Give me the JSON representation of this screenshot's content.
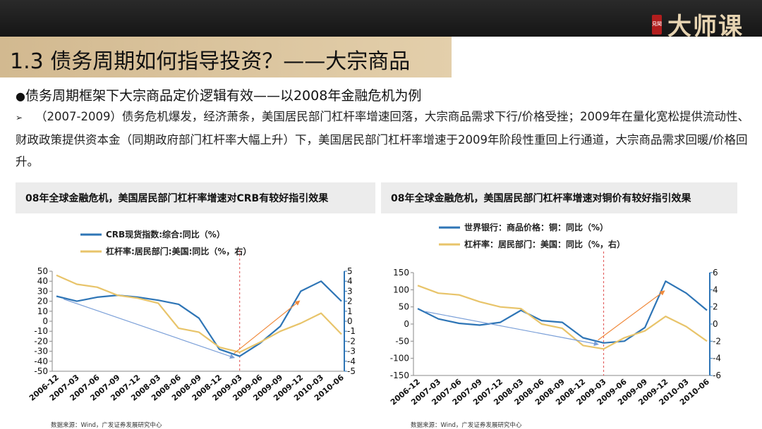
{
  "brand": {
    "seal": "見聞",
    "name": "大师课"
  },
  "header": {
    "title": "1.3 债务周期如何指导投资？——大宗商品"
  },
  "bullet": {
    "marker": "●",
    "text": "债务周期框架下大宗商品定价逻辑有效——以2008年金融危机为例"
  },
  "paragraph": {
    "marker": "➢",
    "text": "（2007-2009）债务危机爆发，经济萧条，美国居民部门杠杆率增速回落，大宗商品需求下行/价格受挫；2009年在量化宽松提供流动性、财政政策提供资本金（同期政府部门杠杆率大幅上升）下，美国居民部门杠杆率增速于2009年阶段性重回上行通道，大宗商品需求回暖/价格回升。"
  },
  "colors": {
    "series_blue": "#2E75B6",
    "series_gold": "#E8C46A",
    "crisis_line": "#E05050",
    "arrow_blue": "#7A9FD8",
    "arrow_orange": "#F08A3C"
  },
  "chart_data": [
    {
      "type": "line",
      "title": "08年全球金融危机，美国居民部门杠杆率增速对CRB有较好指引效果",
      "x_categories": [
        "2006-12",
        "2007-03",
        "2007-06",
        "2007-09",
        "2007-12",
        "2008-03",
        "2008-06",
        "2008-09",
        "2008-12",
        "2009-03",
        "2009-06",
        "2009-09",
        "2009-12",
        "2010-03",
        "2010-06"
      ],
      "series": [
        {
          "name": "CRB现货指数:综合:同比（%）",
          "axis": "left",
          "values": [
            25,
            20,
            24,
            26,
            24,
            21,
            17,
            3,
            -28,
            -35,
            -22,
            -5,
            30,
            40,
            20
          ]
        },
        {
          "name": "杠杆率:居民部门:美国:同比（%，右）",
          "axis": "right",
          "values": [
            4.6,
            3.7,
            3.4,
            2.6,
            2.3,
            1.8,
            -0.7,
            -1.1,
            -2.6,
            -3.1,
            -2.1,
            -1.0,
            -0.2,
            0.8,
            -1.3
          ]
        }
      ],
      "ylim_left": [
        -50,
        50
      ],
      "yticks_left": [
        -50,
        -40,
        -30,
        -20,
        -10,
        0,
        10,
        20,
        30,
        40,
        50
      ],
      "ylim_right": [
        -5,
        5
      ],
      "yticks_right": [
        -5,
        -4,
        -3,
        -2,
        -1,
        0,
        1,
        2,
        3,
        4,
        5
      ],
      "marker_x": "2009-03",
      "source": "数据来源：Wind，广发证券发展研究中心"
    },
    {
      "type": "line",
      "title": "08年全球金融危机，美国居民部门杠杆率增速对铜价有较好指引效果",
      "x_categories": [
        "2006-12",
        "2007-03",
        "2007-06",
        "2007-09",
        "2007-12",
        "2008-03",
        "2008-06",
        "2008-09",
        "2008-12",
        "2009-03",
        "2009-06",
        "2009-09",
        "2009-12",
        "2010-03",
        "2010-06"
      ],
      "series": [
        {
          "name": "世界银行：商品价格：铜：同比（%）",
          "axis": "left",
          "values": [
            45,
            15,
            2,
            -3,
            5,
            40,
            10,
            5,
            -40,
            -55,
            -50,
            -10,
            125,
            90,
            40
          ]
        },
        {
          "name": "杠杆率：居民部门：美国：同比（%，右）",
          "axis": "right",
          "values": [
            4.5,
            3.6,
            3.4,
            2.6,
            2.0,
            1.8,
            0.0,
            -0.5,
            -2.5,
            -2.9,
            -1.6,
            -0.8,
            0.9,
            -0.3,
            -2.0
          ]
        }
      ],
      "ylim_left": [
        -150,
        150
      ],
      "yticks_left": [
        -150,
        -100,
        -50,
        0,
        50,
        100,
        150
      ],
      "ylim_right": [
        -6,
        6
      ],
      "yticks_right": [
        -6,
        -4,
        -2,
        0,
        2,
        4,
        6
      ],
      "marker_x": "2009-03",
      "source": "数据来源：Wind，广发证券发展研究中心"
    }
  ]
}
